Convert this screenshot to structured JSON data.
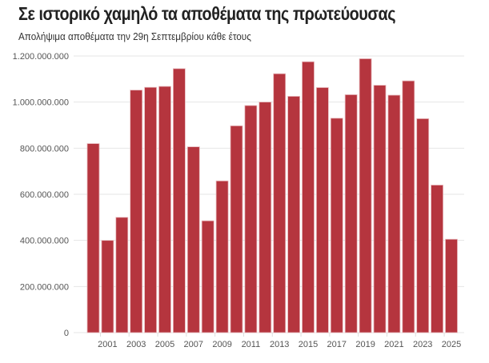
{
  "chart_data": {
    "type": "bar",
    "title": "Σε ιστορικό χαμηλό τα αποθέματα της πρωτεύουσας",
    "subtitle": "Απολήψιμα αποθέματα την 29η Σεπτεμβρίου κάθε έτους",
    "xlabel": "",
    "ylabel": "",
    "categories": [
      "2000",
      "2001",
      "2002",
      "2003",
      "2004",
      "2005",
      "2006",
      "2007",
      "2008",
      "2009",
      "2010",
      "2011",
      "2012",
      "2013",
      "2014",
      "2015",
      "2016",
      "2017",
      "2018",
      "2019",
      "2020",
      "2021",
      "2022",
      "2023",
      "2024",
      "2025"
    ],
    "values": [
      820000000,
      400000000,
      500000000,
      1052000000,
      1064000000,
      1068000000,
      1145000000,
      806000000,
      485000000,
      658000000,
      897000000,
      985000000,
      1000000000,
      1123000000,
      1025000000,
      1175000000,
      1063000000,
      930000000,
      1032000000,
      1188000000,
      1073000000,
      1030000000,
      1092000000,
      928000000,
      640000000,
      405000000
    ],
    "x_tick_labels": [
      "2001",
      "2003",
      "2005",
      "2007",
      "2009",
      "2011",
      "2013",
      "2015",
      "2017",
      "2019",
      "2021",
      "2023",
      "2025"
    ],
    "y_tick_labels": [
      "0",
      "200.000.000",
      "400.000.000",
      "600.000.000",
      "800.000.000",
      "1.000.000.000",
      "1.200.000.000"
    ],
    "y_ticks": [
      0,
      200000000,
      400000000,
      600000000,
      800000000,
      1000000000,
      1200000000
    ],
    "ylim": [
      0,
      1200000000
    ],
    "grid": true,
    "bar_color": "#b5353e"
  }
}
